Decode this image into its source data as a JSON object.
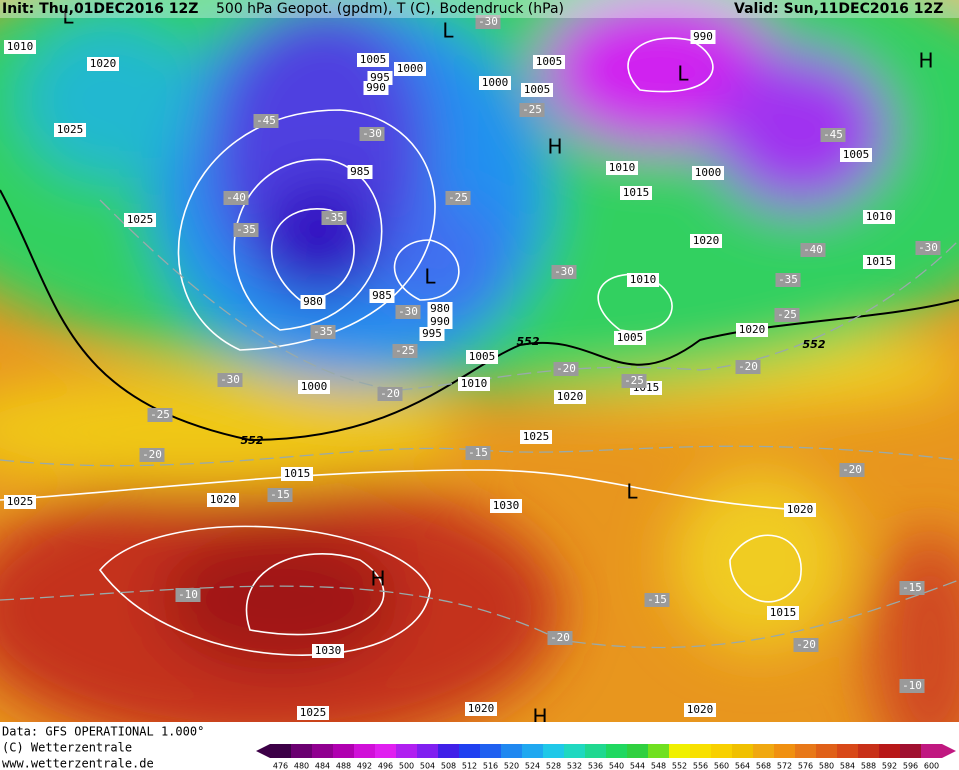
{
  "header": {
    "init": "Init: Thu,01DEC2016 12Z",
    "title": "500 hPa Geopot. (gpdm), T (C), Bodendruck (hPa)",
    "valid": "Valid: Sun,11DEC2016 12Z"
  },
  "footer": {
    "data": "Data: GFS OPERATIONAL 1.000°",
    "copyright": "(C) Wetterzentrale",
    "url": "www.wetterzentrale.de"
  },
  "colorbar": {
    "labels": [
      476,
      480,
      484,
      488,
      492,
      496,
      500,
      504,
      508,
      512,
      516,
      520,
      524,
      528,
      532,
      536,
      540,
      544,
      548,
      552,
      556,
      560,
      564,
      568,
      572,
      576,
      580,
      584,
      588,
      592,
      596,
      600
    ]
  },
  "map": {
    "pressure_centers": [
      "L",
      "L",
      "H",
      "L",
      "H",
      "L",
      "L",
      "H",
      "H"
    ],
    "isobar_labels": [
      "1010",
      "1020",
      "1025",
      "1025",
      "1005",
      "1000",
      "995",
      "990",
      "1000",
      "1005",
      "1005",
      "990",
      "985",
      "980",
      "985",
      "980",
      "990",
      "995",
      "1005",
      "1010",
      "1000",
      "1010",
      "1015",
      "1000",
      "1005",
      "1010",
      "1020",
      "1015",
      "1010",
      "1005",
      "1020",
      "1015",
      "1020",
      "1025",
      "1015",
      "1020",
      "1025",
      "1030",
      "1030",
      "1025",
      "1020",
      "1020",
      "1015",
      "1020"
    ],
    "temperature_labels": [
      "-30",
      "-25",
      "-45",
      "-30",
      "-40",
      "-35",
      "-35",
      "-25",
      "-30",
      "-30",
      "-35",
      "-25",
      "-30",
      "-20",
      "-25",
      "-20",
      "-20",
      "-15",
      "-15",
      "-10",
      "-15",
      "-20",
      "-20",
      "-15",
      "-10",
      "-20",
      "-20",
      "-45",
      "-40",
      "-35",
      "-25",
      "-30",
      "-25"
    ],
    "geopotential_labels": [
      "552",
      "552",
      "552"
    ]
  }
}
